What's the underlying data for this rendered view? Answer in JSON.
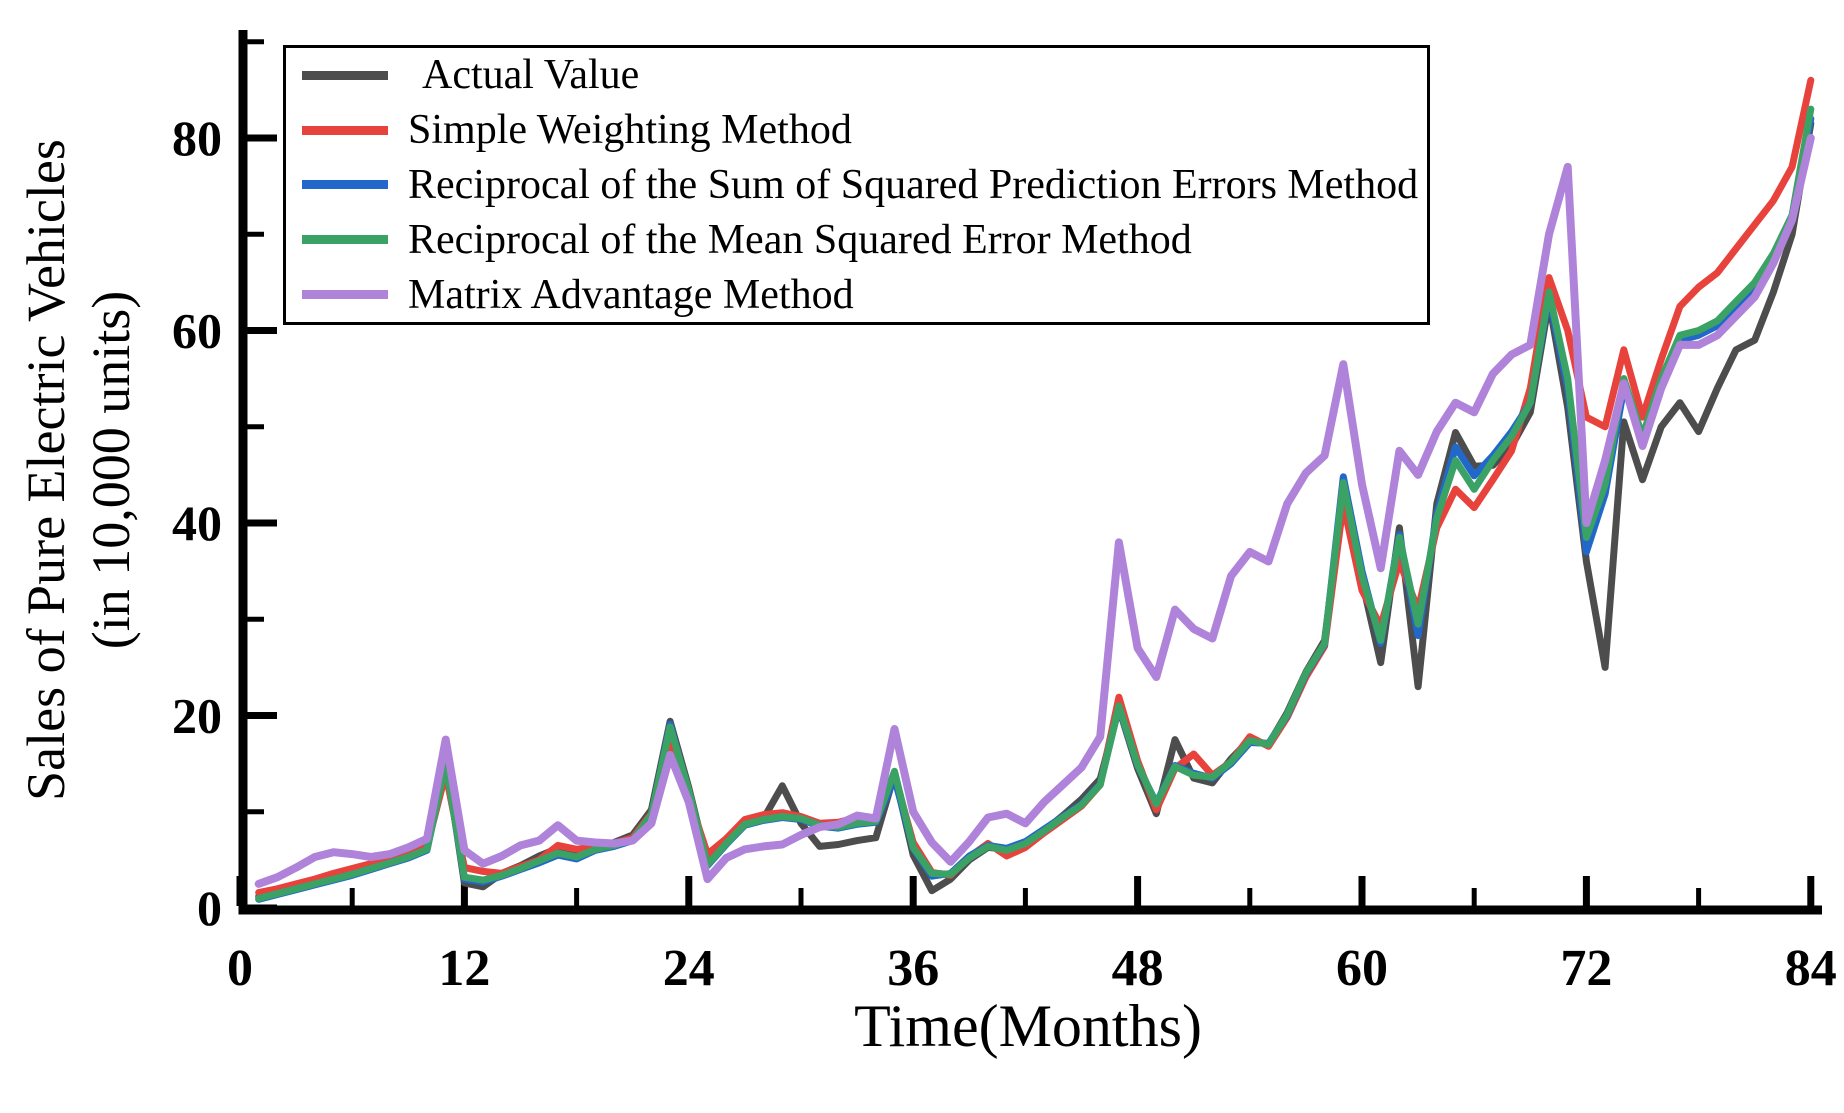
{
  "figure": {
    "background": "#ffffff",
    "axis_color": "#000000",
    "x_axis": {
      "label": "Time(Months)",
      "major_ticks": [
        0,
        12,
        24,
        36,
        48,
        60,
        72,
        84
      ],
      "minor_ticks": [
        6,
        18,
        30,
        42,
        54,
        66,
        78
      ],
      "range": [
        0,
        85.5
      ]
    },
    "y_axis": {
      "label_line1": "Sales of Pure Electric Vehicles",
      "label_line2": "(in 10,000 units)",
      "major_ticks": [
        0,
        20,
        40,
        60,
        80
      ],
      "minor_ticks": [
        10,
        30,
        50,
        70,
        90
      ],
      "range": [
        0,
        91
      ]
    }
  },
  "chart_data": {
    "type": "line",
    "title": "",
    "xlabel": "Time(Months)",
    "ylabel": "Sales of Pure Electric Vehicles (in 10,000 units)",
    "xlim": [
      0,
      85.5
    ],
    "ylim": [
      0,
      91
    ],
    "grid": false,
    "legend_position": "upper left",
    "x_unit": "month index",
    "months": [
      1,
      2,
      3,
      4,
      5,
      6,
      7,
      8,
      9,
      10,
      11,
      12,
      13,
      14,
      15,
      16,
      17,
      18,
      19,
      20,
      21,
      22,
      23,
      24,
      25,
      26,
      27,
      28,
      29,
      30,
      31,
      32,
      33,
      34,
      35,
      36,
      37,
      38,
      39,
      40,
      41,
      42,
      43,
      44,
      45,
      46,
      47,
      48,
      49,
      50,
      51,
      52,
      53,
      54,
      55,
      56,
      57,
      58,
      59,
      60,
      61,
      62,
      63,
      64,
      65,
      66,
      67,
      68,
      69,
      70,
      71,
      72,
      73,
      74,
      75,
      76,
      77,
      78,
      79,
      80,
      81,
      82,
      83,
      84
    ],
    "series": [
      {
        "name": "Actual Value",
        "color": "#4d4d4d",
        "line_width": 7,
        "values": [
          1.2,
          1.8,
          2.4,
          2.9,
          3.3,
          3.9,
          4.4,
          5.2,
          5.5,
          6.2,
          15.5,
          2.6,
          2.2,
          3.6,
          4.4,
          5.4,
          6.2,
          5.6,
          6.3,
          6.8,
          7.6,
          10.2,
          19.4,
          12.5,
          4.6,
          6.8,
          8.8,
          9.3,
          12.7,
          8.8,
          6.4,
          6.6,
          7.0,
          7.3,
          13.9,
          5.5,
          1.8,
          3.0,
          5.0,
          6.3,
          6.1,
          6.6,
          8.0,
          9.6,
          11.3,
          13.4,
          20.8,
          14.5,
          9.8,
          17.5,
          13.5,
          13.0,
          15.5,
          17.5,
          17.0,
          20.3,
          24.5,
          27.8,
          43.3,
          34.0,
          25.5,
          39.5,
          23.0,
          42.0,
          49.4,
          45.9,
          46.0,
          48.0,
          51.5,
          63.0,
          52.0,
          36.0,
          25.0,
          50.5,
          44.5,
          50.0,
          52.5,
          49.5,
          54.0,
          58.0,
          59.0,
          64.0,
          70.0,
          81.5
        ]
      },
      {
        "name": "Simple Weighting Method",
        "color": "#e8423c",
        "line_width": 7,
        "values": [
          1.6,
          2.0,
          2.5,
          3.0,
          3.6,
          4.1,
          4.6,
          5.4,
          5.8,
          6.4,
          14.0,
          4.2,
          3.8,
          3.6,
          4.3,
          5.0,
          6.5,
          6.1,
          6.4,
          6.7,
          7.3,
          9.8,
          17.6,
          11.5,
          5.6,
          7.2,
          9.2,
          9.7,
          9.9,
          9.5,
          8.8,
          8.9,
          9.4,
          9.2,
          13.8,
          6.8,
          3.7,
          3.4,
          5.3,
          6.7,
          5.4,
          6.3,
          7.8,
          9.2,
          10.6,
          12.8,
          21.9,
          15.3,
          10.2,
          14.5,
          16.0,
          13.8,
          15.2,
          17.8,
          16.8,
          19.8,
          24.0,
          27.2,
          42.0,
          33.0,
          29.3,
          36.0,
          31.0,
          39.5,
          43.5,
          41.6,
          44.5,
          47.5,
          54.0,
          65.5,
          60.0,
          51.0,
          50.0,
          58.0,
          51.0,
          57.0,
          62.5,
          64.5,
          66.0,
          68.5,
          71.0,
          73.5,
          77.0,
          86.0
        ]
      },
      {
        "name": "Reciprocal of the Sum of Squared Prediction Errors Method",
        "color": "#2268cb",
        "line_width": 7,
        "values": [
          0.9,
          1.4,
          1.9,
          2.4,
          2.9,
          3.4,
          4.0,
          4.6,
          5.2,
          6.0,
          15.2,
          3.0,
          2.7,
          3.3,
          4.0,
          4.7,
          5.5,
          5.1,
          6.0,
          6.4,
          7.0,
          9.6,
          19.1,
          12.0,
          4.4,
          6.6,
          8.6,
          9.1,
          9.4,
          9.2,
          8.5,
          8.3,
          8.7,
          8.9,
          13.5,
          6.2,
          3.3,
          3.6,
          5.4,
          6.5,
          6.2,
          6.9,
          8.2,
          9.5,
          10.8,
          12.9,
          20.9,
          14.8,
          10.9,
          14.8,
          14.0,
          13.5,
          15.0,
          17.2,
          17.1,
          20.0,
          24.3,
          27.4,
          44.8,
          35.0,
          27.5,
          38.8,
          28.3,
          41.0,
          47.9,
          44.9,
          47.0,
          49.5,
          52.5,
          63.5,
          54.0,
          37.0,
          43.0,
          54.0,
          49.0,
          54.5,
          59.0,
          59.5,
          60.5,
          62.5,
          64.5,
          67.5,
          71.5,
          82.0
        ]
      },
      {
        "name": "Reciprocal of the Mean Squared Error Method",
        "color": "#3ba266",
        "line_width": 7,
        "values": [
          1.0,
          1.5,
          2.0,
          2.5,
          3.0,
          3.5,
          4.1,
          4.7,
          5.3,
          6.1,
          15.0,
          3.2,
          2.9,
          3.4,
          4.1,
          4.9,
          5.7,
          5.3,
          6.1,
          6.5,
          7.1,
          9.7,
          18.8,
          12.2,
          4.5,
          6.7,
          8.7,
          9.2,
          9.5,
          9.3,
          8.6,
          8.4,
          8.8,
          9.0,
          14.2,
          6.3,
          3.6,
          3.5,
          5.2,
          6.4,
          6.0,
          6.7,
          8.0,
          9.4,
          10.7,
          12.8,
          21.0,
          14.9,
          10.8,
          14.7,
          13.8,
          13.6,
          15.2,
          17.4,
          17.0,
          20.1,
          24.4,
          27.5,
          44.2,
          34.5,
          27.8,
          38.5,
          29.5,
          40.5,
          46.5,
          43.5,
          46.5,
          49.0,
          52.5,
          64.0,
          55.0,
          38.5,
          44.0,
          55.0,
          49.0,
          55.0,
          59.5,
          60.0,
          61.0,
          63.0,
          65.0,
          68.0,
          72.0,
          83.0
        ]
      },
      {
        "name": "Matrix Advantage Method",
        "color": "#b083da",
        "line_width": 8,
        "values": [
          2.5,
          3.2,
          4.2,
          5.3,
          5.8,
          5.6,
          5.3,
          5.6,
          6.3,
          7.2,
          17.5,
          6.0,
          4.6,
          5.4,
          6.5,
          7.0,
          8.6,
          7.0,
          6.8,
          6.7,
          7.0,
          8.8,
          15.9,
          11.0,
          3.0,
          5.2,
          6.1,
          6.4,
          6.6,
          7.6,
          8.4,
          8.7,
          9.6,
          9.3,
          18.6,
          10.0,
          6.8,
          4.8,
          6.9,
          9.4,
          9.8,
          8.8,
          11.0,
          12.8,
          14.6,
          17.8,
          38.0,
          27.0,
          24.0,
          31.0,
          29.0,
          28.0,
          34.5,
          37.0,
          36.0,
          42.0,
          45.2,
          47.0,
          56.5,
          44.0,
          35.3,
          47.5,
          45.0,
          49.5,
          52.5,
          51.5,
          55.5,
          57.5,
          58.5,
          70.0,
          77.0,
          40.0,
          46.5,
          54.5,
          48.0,
          54.0,
          58.5,
          58.5,
          59.5,
          61.5,
          63.5,
          67.0,
          71.5,
          80.0
        ]
      }
    ]
  }
}
